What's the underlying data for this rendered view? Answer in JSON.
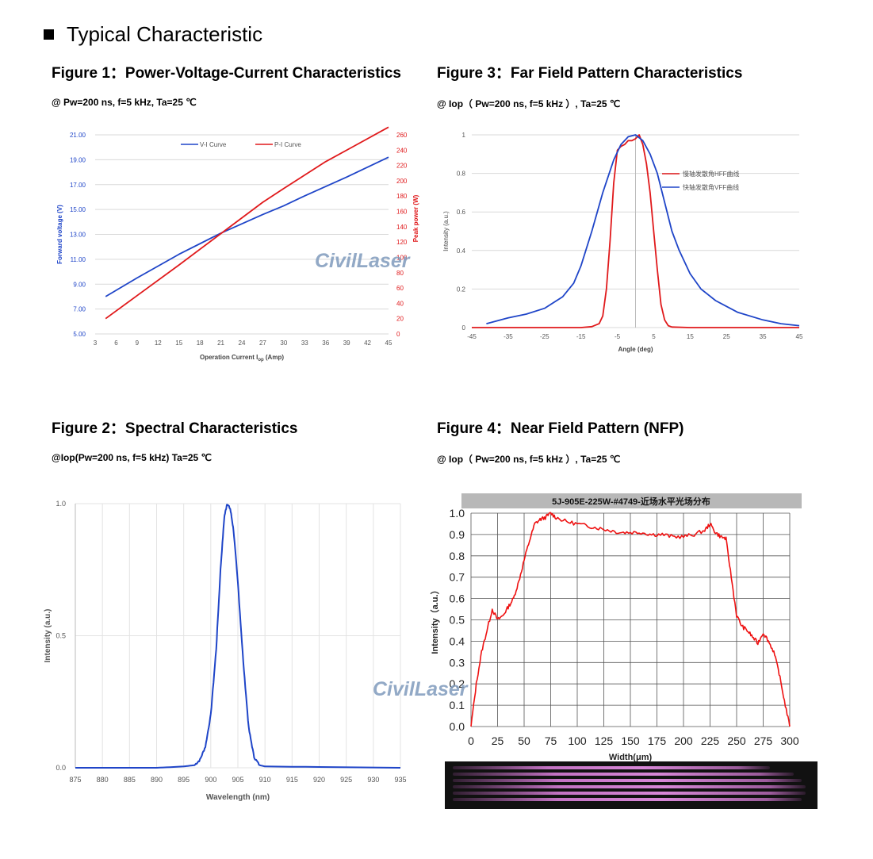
{
  "heading": "Typical Characteristic",
  "fig1": {
    "title": "Figure 1：Power-Voltage-Current Characteristics",
    "cond": "@ Pw=200 ns, f=5 kHz, Ta=25 ℃"
  },
  "fig2": {
    "title": "Figure 2：Spectral Characteristics",
    "cond": "@Iop(Pw=200 ns, f=5 kHz) Ta=25 ℃"
  },
  "fig3": {
    "title": "Figure 3：Far Field Pattern Characteristics",
    "cond": "@ Iop（ Pw=200 ns, f=5 kHz ）, Ta=25 ℃"
  },
  "fig4": {
    "title": "Figure 4：Near Field Pattern (NFP)",
    "cond": "@ Iop（ Pw=200 ns, f=5 kHz ）, Ta=25 ℃"
  },
  "watermark": "CivilLaser",
  "colors": {
    "blue": "#1f45c8",
    "red": "#e0191b",
    "nfp_red": "#ee1111",
    "grid": "#d9d9d9",
    "header_gray": "#b8b8b8"
  },
  "chart_data": [
    {
      "id": "fig1",
      "type": "line",
      "xlabel": "Operation Current I",
      "xlabel_sub": "op",
      "xlabel_suffix": " (Amp)",
      "ylabel": "Forward voltage (V)",
      "y2label": "Peak power (W)",
      "xlim": [
        3,
        45
      ],
      "ylim": [
        5,
        21
      ],
      "y2lim": [
        0,
        260
      ],
      "x_ticks": [
        3,
        6,
        9,
        12,
        15,
        18,
        21,
        24,
        27,
        30,
        33,
        36,
        39,
        42,
        45
      ],
      "y_ticks": [
        "5.00",
        "7.00",
        "9.00",
        "11.00",
        "13.00",
        "15.00",
        "17.00",
        "19.00",
        "21.00"
      ],
      "y2_ticks": [
        0,
        20,
        40,
        60,
        80,
        100,
        120,
        140,
        160,
        180,
        200,
        220,
        240,
        260
      ],
      "legend_position": "top",
      "series": [
        {
          "name": "V-I Curve",
          "axis": "left",
          "color": "#1f45c8",
          "x": [
            4.5,
            9,
            15,
            21,
            27,
            30,
            33,
            39,
            45
          ],
          "y": [
            8.0,
            9.5,
            11.4,
            13.1,
            14.6,
            15.3,
            16.1,
            17.6,
            19.2
          ]
        },
        {
          "name": "P-I Curve",
          "axis": "right",
          "color": "#e0191b",
          "x": [
            4.5,
            9,
            15,
            21,
            27,
            30,
            36,
            40,
            45
          ],
          "y": [
            20,
            50,
            90,
            131,
            172,
            190,
            225,
            245,
            270
          ]
        }
      ]
    },
    {
      "id": "fig2",
      "type": "line",
      "xlabel": "Wavelength (nm)",
      "ylabel": "Intensity (a.u.)",
      "xlim": [
        875,
        935
      ],
      "ylim": [
        0,
        1
      ],
      "x_ticks": [
        875,
        880,
        885,
        890,
        895,
        900,
        905,
        910,
        915,
        920,
        925,
        930,
        935
      ],
      "y_ticks": [
        "0.0",
        "0.5",
        "1.0"
      ],
      "series": [
        {
          "color": "#1f45c8",
          "x": [
            875,
            890,
            895,
            897,
            898,
            899,
            900,
            901,
            901.8,
            902.5,
            903,
            903.6,
            904.2,
            905,
            906,
            907,
            908,
            909,
            910,
            920,
            935
          ],
          "y": [
            0,
            0,
            0.005,
            0.01,
            0.03,
            0.08,
            0.2,
            0.45,
            0.75,
            0.95,
            1.0,
            0.98,
            0.9,
            0.7,
            0.4,
            0.15,
            0.04,
            0.01,
            0.005,
            0.003,
            0
          ]
        }
      ]
    },
    {
      "id": "fig3",
      "type": "line",
      "xlabel": "Angle (deg)",
      "ylabel": "Intensity (a.u.)",
      "xlim": [
        -45,
        45
      ],
      "ylim": [
        0,
        1
      ],
      "x_ticks": [
        -45,
        -35,
        -25,
        -15,
        -5,
        5,
        15,
        25,
        35,
        45
      ],
      "y_ticks": [
        "0",
        "0.2",
        "0.4",
        "0.6",
        "0.8",
        "1"
      ],
      "legend_position": "right",
      "series": [
        {
          "name": "慢轴发散角HFF曲线",
          "color": "#e0191b",
          "x": [
            -45,
            -15,
            -12,
            -10,
            -9,
            -8,
            -7,
            -6,
            -5,
            -4,
            -3,
            -2,
            -1,
            0,
            1,
            2,
            3,
            4,
            5,
            6,
            7,
            8,
            9,
            10,
            15,
            45
          ],
          "y": [
            0,
            0,
            0.005,
            0.02,
            0.06,
            0.2,
            0.45,
            0.75,
            0.92,
            0.94,
            0.95,
            0.97,
            0.97,
            0.98,
            1.0,
            0.95,
            0.85,
            0.7,
            0.5,
            0.3,
            0.12,
            0.04,
            0.01,
            0.003,
            0,
            0
          ]
        },
        {
          "name": "快轴发散角VFF曲线",
          "color": "#1f45c8",
          "x": [
            -41,
            -35,
            -30,
            -25,
            -20,
            -17,
            -15,
            -12,
            -9,
            -6,
            -4,
            -2,
            0,
            2,
            4,
            6,
            8,
            10,
            12,
            15,
            18,
            22,
            28,
            35,
            40,
            45
          ],
          "y": [
            0.02,
            0.05,
            0.07,
            0.1,
            0.16,
            0.23,
            0.32,
            0.5,
            0.7,
            0.87,
            0.95,
            0.99,
            1.0,
            0.97,
            0.9,
            0.8,
            0.65,
            0.5,
            0.4,
            0.28,
            0.2,
            0.14,
            0.08,
            0.04,
            0.02,
            0.01
          ]
        }
      ]
    },
    {
      "id": "fig4",
      "type": "line",
      "title": "5J-905E-225W-#4749-近场水平光场分布",
      "xlabel": "Width(μm)",
      "ylabel": "Intensity（a.u.）",
      "xlim": [
        0,
        300
      ],
      "ylim": [
        0,
        1
      ],
      "x_ticks": [
        0,
        25,
        50,
        75,
        100,
        125,
        150,
        175,
        200,
        225,
        250,
        275,
        300
      ],
      "y_ticks": [
        "0.0",
        "0.1",
        "0.2",
        "0.3",
        "0.4",
        "0.5",
        "0.6",
        "0.7",
        "0.8",
        "0.9",
        "1.0"
      ],
      "series": [
        {
          "color": "#ee1111",
          "x": [
            0,
            5,
            10,
            15,
            20,
            25,
            30,
            35,
            40,
            45,
            50,
            55,
            60,
            65,
            70,
            75,
            80,
            90,
            100,
            110,
            120,
            130,
            140,
            150,
            160,
            170,
            180,
            190,
            200,
            210,
            220,
            225,
            230,
            235,
            240,
            245,
            250,
            255,
            260,
            265,
            270,
            275,
            280,
            285,
            290,
            295,
            300
          ],
          "y": [
            0.0,
            0.2,
            0.35,
            0.45,
            0.55,
            0.5,
            0.52,
            0.56,
            0.6,
            0.68,
            0.78,
            0.87,
            0.95,
            0.97,
            0.98,
            1.0,
            0.98,
            0.96,
            0.95,
            0.94,
            0.93,
            0.92,
            0.91,
            0.91,
            0.91,
            0.9,
            0.9,
            0.89,
            0.89,
            0.9,
            0.92,
            0.95,
            0.91,
            0.89,
            0.88,
            0.7,
            0.52,
            0.47,
            0.45,
            0.42,
            0.39,
            0.44,
            0.4,
            0.35,
            0.25,
            0.12,
            0.0
          ]
        }
      ]
    }
  ]
}
